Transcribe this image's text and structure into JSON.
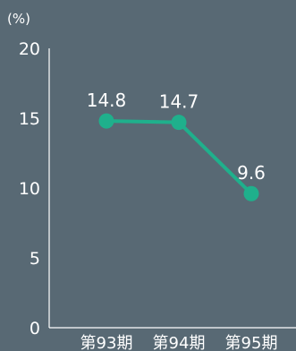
{
  "chart_data": {
    "type": "line",
    "unit_label": "(%)",
    "categories": [
      "第93期",
      "第94期",
      "第95期"
    ],
    "values": [
      14.8,
      14.7,
      9.6
    ],
    "value_labels": [
      "14.8",
      "14.7",
      "9.6"
    ],
    "ylim": [
      0,
      20
    ],
    "yticks": [
      "0",
      "5",
      "10",
      "15",
      "20"
    ],
    "grid": false,
    "colors": {
      "background": "#586974",
      "line": "#1fb08c",
      "axis": "#ffffff",
      "text": "#ffffff"
    }
  }
}
